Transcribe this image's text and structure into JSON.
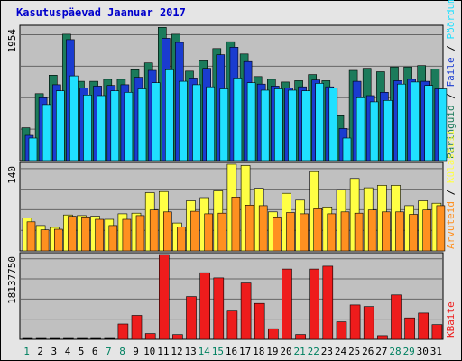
{
  "chart_data": {
    "title": "Kasutuspäevad Jaanuar 2017",
    "type": "bar",
    "x": [
      "1",
      "2",
      "3",
      "4",
      "5",
      "6",
      "7",
      "8",
      "9",
      "10",
      "11",
      "12",
      "13",
      "14",
      "15",
      "16",
      "17",
      "18",
      "19",
      "20",
      "21",
      "22",
      "23",
      "24",
      "25",
      "26",
      "27",
      "28",
      "29",
      "30",
      "31"
    ],
    "weekend_days": [
      1,
      7,
      8,
      14,
      15,
      21,
      22,
      28,
      29
    ],
    "colors": {
      "weekday_label": "#000000",
      "weekend_label": "#008060",
      "hits": "#1b7b5b",
      "files": "#1a3cd0",
      "pages": "#20e0ff",
      "visits": "#ffff44",
      "sites": "#ff9020",
      "kbytes": "#ee1c1c",
      "title": "#0000cc"
    },
    "panels": [
      {
        "ytick": "1954",
        "ymax": 1954,
        "series": [
          {
            "name": "Päringuid",
            "key": "hits",
            "values": [
              480,
              980,
              1250,
              1850,
              1160,
              1160,
              1190,
              1190,
              1330,
              1430,
              1950,
              1850,
              1310,
              1460,
              1640,
              1740,
              1560,
              1230,
              1190,
              1150,
              1170,
              1260,
              1170,
              670,
              1320,
              1350,
              1300,
              1370,
              1370,
              1390,
              1340
            ]
          },
          {
            "name": "Faile",
            "key": "files",
            "values": [
              370,
              920,
              1110,
              1770,
              1060,
              1090,
              1100,
              1110,
              1220,
              1320,
              1790,
              1730,
              1210,
              1350,
              1550,
              1660,
              1450,
              1120,
              1090,
              1060,
              1080,
              1180,
              1080,
              470,
              1160,
              950,
              1000,
              1170,
              1190,
              1160,
              1050
            ]
          },
          {
            "name": "Pöördumisi",
            "key": "pages",
            "values": [
              330,
              820,
              1020,
              1240,
              960,
              950,
              1020,
              1000,
              1050,
              1140,
              1330,
              1160,
              1110,
              1080,
              1050,
              1210,
              1140,
              1030,
              1050,
              1030,
              1020,
              1130,
              1060,
              330,
              920,
              860,
              880,
              1120,
              1150,
              1100,
              1050
            ]
          }
        ],
        "right_label": [
          {
            "text": "Päringuid",
            "key": "hits"
          },
          {
            "text": " / ",
            "key": "sep"
          },
          {
            "text": "Faile",
            "key": "files"
          },
          {
            "text": " / ",
            "key": "sep"
          },
          {
            "text": "Pöördumisi",
            "key": "pages"
          }
        ]
      },
      {
        "ytick": "140",
        "ymax": 140,
        "series": [
          {
            "name": "Külastusi",
            "key": "visits",
            "values": [
              53,
              41,
              38,
              58,
              57,
              56,
              51,
              60,
              61,
              94,
              96,
              45,
              81,
              86,
              97,
              140,
              138,
              101,
              63,
              93,
              82,
              128,
              71,
              99,
              117,
              102,
              106,
              106,
              73,
              81,
              77
            ]
          },
          {
            "name": "Arvuteid",
            "key": "sites",
            "values": [
              47,
              34,
              35,
              56,
              55,
              51,
              41,
              51,
              57,
              66,
              63,
              39,
              64,
              60,
              61,
              87,
              74,
              73,
              55,
              62,
              60,
              68,
              60,
              63,
              61,
              66,
              63,
              63,
              59,
              66,
              73
            ]
          }
        ],
        "right_label": [
          {
            "text": "Arvuteid",
            "key": "sites"
          },
          {
            "text": " / ",
            "key": "sep"
          },
          {
            "text": "Külastusi",
            "key": "visits"
          }
        ]
      },
      {
        "ytick": "18137750",
        "ymax": 18137750,
        "series": [
          {
            "name": "KBaite",
            "key": "kbytes",
            "values": [
              0,
              0,
              0,
              0,
              0,
              0,
              0,
              3280000,
              5120000,
              1230000,
              18140000,
              1030000,
              9150000,
              14240000,
              13140000,
              6040000,
              12050000,
              7670000,
              2270000,
              15040000,
              1050000,
              15030000,
              15650000,
              3740000,
              7350000,
              7000000,
              800000,
              9490000,
              4600000,
              5610000,
              3140000
            ]
          }
        ],
        "right_label": [
          {
            "text": "KBaite",
            "key": "kbytes"
          }
        ]
      }
    ]
  }
}
